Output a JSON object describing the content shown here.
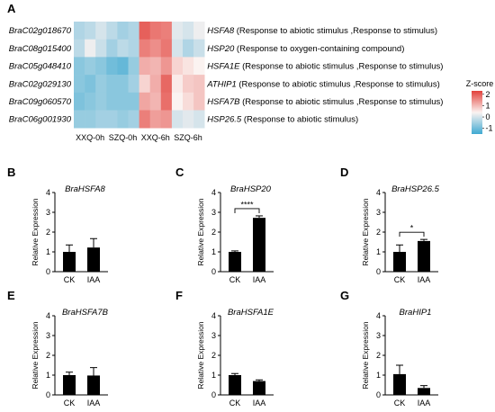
{
  "panel_letters": {
    "A": "A",
    "B": "B",
    "C": "C",
    "D": "D",
    "E": "E",
    "F": "F",
    "G": "G"
  },
  "heatmap": {
    "legend_title": "Z-score",
    "legend_ticks": [
      "2",
      "1",
      "0",
      "-1"
    ],
    "legend_range": [
      -1.5,
      2.3
    ],
    "group_labels": [
      "XXQ-0h",
      "SZQ-0h",
      "XXQ-6h",
      "SZQ-6h"
    ],
    "colors": {
      "low": "#3fa9d2",
      "mid": "#fbf3f1",
      "high": "#e2413b"
    },
    "rows": [
      {
        "gene_id": "BraC02g018670",
        "annot_gene": "HSFA8",
        "annot_desc": " (Response to abiotic stimulus ,Response to stimulus)",
        "z": [
          -0.6,
          -0.5,
          -0.3,
          -0.5,
          -0.7,
          -0.6,
          1.9,
          1.6,
          1.5,
          -0.2,
          -0.3,
          -0.1
        ]
      },
      {
        "gene_id": "BraC08g015400",
        "annot_gene": "HSP20",
        "annot_desc": " (Response to oxygen-containing compound)",
        "z": [
          -0.5,
          -0.1,
          -0.4,
          -0.7,
          -0.5,
          -0.6,
          1.5,
          1.3,
          1.6,
          -0.3,
          -0.6,
          -0.4
        ]
      },
      {
        "gene_id": "BraC05g048410",
        "annot_gene": "HSFA1E",
        "annot_desc": " (Response to abiotic stimulus ,Response to stimulus)",
        "z": [
          -0.9,
          -0.8,
          -0.9,
          -1.1,
          -1.2,
          -0.8,
          0.9,
          0.8,
          1.2,
          0.4,
          0.2,
          0.0
        ]
      },
      {
        "gene_id": "BraC02g029130",
        "annot_gene": "ATHIP1",
        "annot_desc": " (Response to abiotic stimulus ,Response to stimulus)",
        "z": [
          -0.9,
          -1.0,
          -0.8,
          -0.9,
          -0.9,
          -0.7,
          0.4,
          0.9,
          1.8,
          0.1,
          0.5,
          0.6
        ]
      },
      {
        "gene_id": "BraC09g060570",
        "annot_gene": "HSFA7B",
        "annot_desc": " (Response to abiotic stimulus ,Response to stimulus)",
        "z": [
          -1.0,
          -0.9,
          -0.8,
          -0.9,
          -0.9,
          -0.9,
          1.0,
          0.8,
          1.7,
          0.0,
          0.3,
          0.6
        ]
      },
      {
        "gene_id": "BraC06g001930",
        "annot_gene": "HSP26.5",
        "annot_desc": " (Response to abiotic stimulus)",
        "z": [
          -0.8,
          -0.8,
          -0.7,
          -0.7,
          -0.8,
          -0.7,
          1.5,
          1.1,
          1.2,
          -0.3,
          -0.2,
          -0.3
        ]
      }
    ]
  },
  "chart_data": [
    {
      "type": "bar",
      "panel": "B",
      "title": "BraHSFA8",
      "ylabel": "Relative Expression",
      "categories": [
        "CK",
        "IAA"
      ],
      "values": [
        1.0,
        1.22
      ],
      "errors": [
        0.35,
        0.45
      ],
      "ylim": [
        0,
        4
      ],
      "yticks": [
        "0",
        "1",
        "2",
        "3",
        "4"
      ],
      "significance": ""
    },
    {
      "type": "bar",
      "panel": "C",
      "title": "BraHSP20",
      "ylabel": "Relative Expression",
      "categories": [
        "CK",
        "IAA"
      ],
      "values": [
        1.0,
        2.72
      ],
      "errors": [
        0.05,
        0.1
      ],
      "ylim": [
        0,
        4
      ],
      "yticks": [
        "0",
        "1",
        "2",
        "3",
        "4"
      ],
      "significance": "****"
    },
    {
      "type": "bar",
      "panel": "D",
      "title": "BraHSP26.5",
      "ylabel": "Relative Expression",
      "categories": [
        "CK",
        "IAA"
      ],
      "values": [
        1.0,
        1.55
      ],
      "errors": [
        0.35,
        0.08
      ],
      "ylim": [
        0,
        4
      ],
      "yticks": [
        "0",
        "1",
        "2",
        "3",
        "4"
      ],
      "significance": "*"
    },
    {
      "type": "bar",
      "panel": "E",
      "title": "BraHSFA7B",
      "ylabel": "Relative Expression",
      "categories": [
        "CK",
        "IAA"
      ],
      "values": [
        1.0,
        0.98
      ],
      "errors": [
        0.15,
        0.4
      ],
      "ylim": [
        0,
        4
      ],
      "yticks": [
        "0",
        "1",
        "2",
        "3",
        "4"
      ],
      "significance": ""
    },
    {
      "type": "bar",
      "panel": "F",
      "title": "BraHSFA1E",
      "ylabel": "Relative Expression",
      "categories": [
        "CK",
        "IAA"
      ],
      "values": [
        1.0,
        0.7
      ],
      "errors": [
        0.08,
        0.06
      ],
      "ylim": [
        0,
        4
      ],
      "yticks": [
        "0",
        "1",
        "2",
        "3",
        "4"
      ],
      "significance": ""
    },
    {
      "type": "bar",
      "panel": "G",
      "title": "BraHIP1",
      "ylabel": "Relative Expression",
      "categories": [
        "CK",
        "IAA"
      ],
      "values": [
        1.05,
        0.35
      ],
      "errors": [
        0.45,
        0.12
      ],
      "ylim": [
        0,
        4
      ],
      "yticks": [
        "0",
        "1",
        "2",
        "3",
        "4"
      ],
      "significance": ""
    }
  ]
}
